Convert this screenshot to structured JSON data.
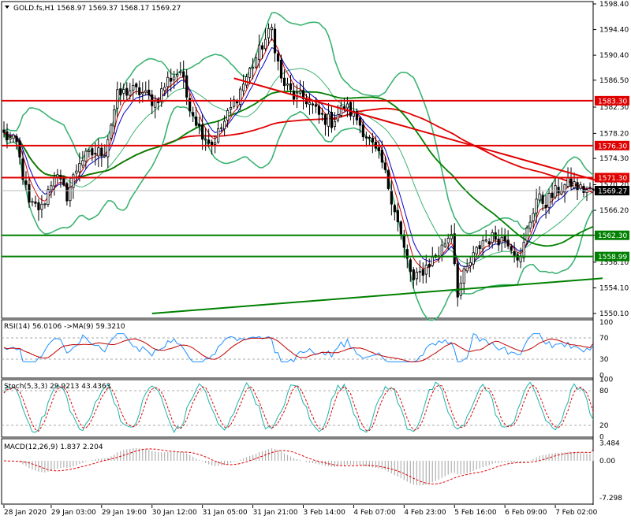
{
  "header": {
    "symbol": "GOLD.fs,H1",
    "open": "1568.97",
    "high": "1569.37",
    "low": "1568.17",
    "close": "1569.27"
  },
  "colors": {
    "bullish": "#000000",
    "bearish": "#000000",
    "bollinger": "#3cb371",
    "ma_fast_red": "#d40000",
    "ma_fast_blue": "#0000cc",
    "ma_green": "#008000",
    "ma_slow_red": "#e00000",
    "horizontal_red": "#e00000",
    "horizontal_green": "#008000",
    "rsi_line": "#1e90ff",
    "rsi_ma": "#c00000",
    "stoch_main": "#20b2aa",
    "stoch_signal": "#e00000",
    "macd_hist": "#b0b0b0",
    "macd_signal": "#e00000",
    "price_label_bg": "#e00000",
    "green_label_bg": "#008000",
    "current_label_bg": "#000000"
  },
  "chart_data": [
    {
      "type": "candlestick",
      "panel": "price",
      "yticks": [
        "1598.40",
        "1594.40",
        "1590.40",
        "1586.50",
        "1582.30",
        "1578.20",
        "1574.30",
        "1570.20",
        "1566.20",
        "1562.30",
        "1558.10",
        "1554.10",
        "1550.10"
      ],
      "ylim": [
        1550.1,
        1598.4
      ],
      "horizontal_lines": [
        {
          "value": 1583.3,
          "label": "1583.30",
          "color": "red"
        },
        {
          "value": 1576.3,
          "label": "1576.30",
          "color": "red"
        },
        {
          "value": 1571.3,
          "label": "1571.30",
          "color": "red"
        },
        {
          "value": 1562.3,
          "label": "1562.30",
          "color": "green"
        },
        {
          "value": 1558.99,
          "label": "1558.99",
          "color": "green"
        }
      ],
      "current_price": {
        "value": 1569.27,
        "label": "1569.27"
      },
      "trendlines": [
        {
          "from": [
            73,
            1586.8
          ],
          "to": [
            190,
            1570.6
          ],
          "color": "red"
        },
        {
          "from": [
            47,
            1550.1
          ],
          "to": [
            190,
            1555.6
          ],
          "color": "green"
        }
      ],
      "anchors": [
        [
          0,
          1578.0
        ],
        [
          4,
          1576.5
        ],
        [
          8,
          1567.0
        ],
        [
          12,
          1566.5
        ],
        [
          16,
          1572.0
        ],
        [
          20,
          1568.5
        ],
        [
          24,
          1574.0
        ],
        [
          28,
          1575.0
        ],
        [
          32,
          1575.5
        ],
        [
          36,
          1584.0
        ],
        [
          40,
          1585.0
        ],
        [
          44,
          1584.5
        ],
        [
          48,
          1583.0
        ],
        [
          52,
          1586.5
        ],
        [
          56,
          1588.0
        ],
        [
          58,
          1584.0
        ],
        [
          62,
          1579.0
        ],
        [
          66,
          1576.5
        ],
        [
          70,
          1580.0
        ],
        [
          74,
          1584.0
        ],
        [
          78,
          1588.0
        ],
        [
          82,
          1592.0
        ],
        [
          85,
          1594.5
        ],
        [
          88,
          1586.5
        ],
        [
          92,
          1584.0
        ],
        [
          96,
          1583.5
        ],
        [
          100,
          1581.0
        ],
        [
          104,
          1580.0
        ],
        [
          108,
          1582.5
        ],
        [
          112,
          1580.5
        ],
        [
          116,
          1577.0
        ],
        [
          120,
          1573.5
        ],
        [
          124,
          1566.5
        ],
        [
          127,
          1560.0
        ],
        [
          130,
          1555.0
        ],
        [
          134,
          1557.5
        ],
        [
          138,
          1559.5
        ],
        [
          142,
          1563.0
        ],
        [
          144,
          1553.5
        ],
        [
          146,
          1556.0
        ],
        [
          148,
          1558.0
        ],
        [
          152,
          1561.5
        ],
        [
          156,
          1562.0
        ],
        [
          160,
          1561.5
        ],
        [
          164,
          1558.5
        ],
        [
          166,
          1563.0
        ],
        [
          169,
          1568.0
        ],
        [
          172,
          1567.5
        ],
        [
          176,
          1569.5
        ],
        [
          180,
          1570.5
        ],
        [
          183,
          1569.5
        ],
        [
          186,
          1569.3
        ]
      ]
    },
    {
      "type": "line",
      "panel": "rsi",
      "title": "RSI(14) 56.0106",
      "ma_label": "->MA(9) 59.3210",
      "yticks": [
        "100",
        "70",
        "30",
        "0"
      ],
      "ylim": [
        0,
        100
      ],
      "rsi": 56.0106,
      "ma": 59.321
    },
    {
      "type": "line",
      "panel": "stoch",
      "title": "Stoch(5,3,3) 29.9213 43.4363",
      "yticks": [
        "100",
        "80",
        "20",
        "0"
      ],
      "ylim": [
        0,
        100
      ],
      "main": 29.9213,
      "signal": 43.4363
    },
    {
      "type": "bar",
      "panel": "macd",
      "title": "MACD(12,26,9) 1.837 2.204",
      "yticks": [
        "3.484",
        "0.00",
        "-7.298"
      ],
      "ylim": [
        -7.298,
        3.484
      ],
      "macd": 1.837,
      "signal": 2.204
    }
  ],
  "xaxis": {
    "labels": [
      {
        "bar": 0,
        "text": "28 Jan 2020"
      },
      {
        "bar": 15,
        "text": "29 Jan 03:00"
      },
      {
        "bar": 31,
        "text": "29 Jan 19:00"
      },
      {
        "bar": 47,
        "text": "30 Jan 12:00"
      },
      {
        "bar": 63,
        "text": "31 Jan 05:00"
      },
      {
        "bar": 79,
        "text": "31 Jan 21:00"
      },
      {
        "bar": 95,
        "text": "3 Feb 14:00"
      },
      {
        "bar": 111,
        "text": "4 Feb 07:00"
      },
      {
        "bar": 127,
        "text": "4 Feb 23:00"
      },
      {
        "bar": 143,
        "text": "5 Feb 16:00"
      },
      {
        "bar": 159,
        "text": "6 Feb 09:00"
      },
      {
        "bar": 175,
        "text": "7 Feb 02:00"
      }
    ]
  }
}
